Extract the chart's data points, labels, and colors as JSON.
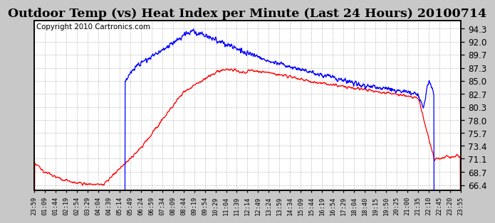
{
  "title": "Outdoor Temp (vs) Heat Index per Minute (Last 24 Hours) 20100714",
  "copyright": "Copyright 2010 Cartronics.com",
  "yticks": [
    66.4,
    68.7,
    71.1,
    73.4,
    75.7,
    78.0,
    80.3,
    82.7,
    85.0,
    87.3,
    89.7,
    92.0,
    94.3
  ],
  "ylim": [
    65.5,
    95.8
  ],
  "xtick_labels": [
    "23:59",
    "01:09",
    "01:44",
    "02:19",
    "02:54",
    "03:29",
    "04:04",
    "04:39",
    "05:14",
    "05:49",
    "06:24",
    "06:59",
    "07:34",
    "08:09",
    "08:44",
    "09:19",
    "09:54",
    "10:29",
    "11:04",
    "11:39",
    "12:14",
    "12:49",
    "13:24",
    "13:59",
    "14:34",
    "15:09",
    "15:44",
    "16:19",
    "16:54",
    "17:29",
    "18:04",
    "18:40",
    "19:15",
    "19:50",
    "20:25",
    "21:00",
    "21:35",
    "22:10",
    "22:45",
    "23:20",
    "23:55"
  ],
  "bg_color": "#c8c8c8",
  "plot_bg": "#ffffff",
  "grid_color": "#aaaaaa",
  "line_color_temp": "#ff0000",
  "line_color_heat": "#0000ff",
  "title_fontsize": 11,
  "copyright_fontsize": 6.5,
  "n_ticks": 41
}
